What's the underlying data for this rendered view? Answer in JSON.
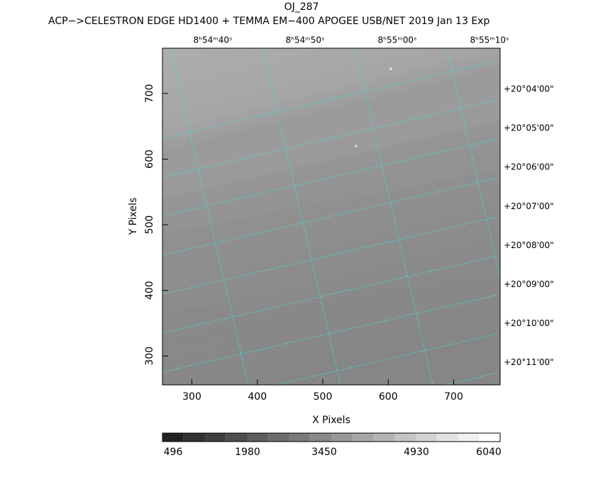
{
  "chart_data": {
    "type": "image",
    "title": "OJ_287",
    "subtitle": "ACP−>CELESTRON EDGE HD1400 + TEMMA EM−400 APOGEE USB/NET   2019 Jan 13    Exp",
    "x_label": "X Pixels",
    "y_label": "Y Pixels",
    "xlim": [
      255,
      771
    ],
    "ylim": [
      256,
      769
    ],
    "xticks": [
      300,
      400,
      500,
      600,
      700
    ],
    "yticks": [
      300,
      400,
      500,
      600,
      700
    ],
    "ra_ticks": [
      "8ʰ54ᵐ40ˢ",
      "8ʰ54ᵐ50ˢ",
      "8ʰ55ᵐ00ˢ",
      "8ʰ55ᵐ10ˢ"
    ],
    "dec_ticks": [
      "+20°04'00\"",
      "+20°05'00\"",
      "+20°06'00\"",
      "+20°07'00\"",
      "+20°08'00\"",
      "+20°09'00\"",
      "+20°10'00\"",
      "+20°11'00\""
    ],
    "colorbar_ticks": [
      496,
      1980,
      3450,
      4930,
      6040
    ],
    "grid_color": "#40e0e0"
  }
}
